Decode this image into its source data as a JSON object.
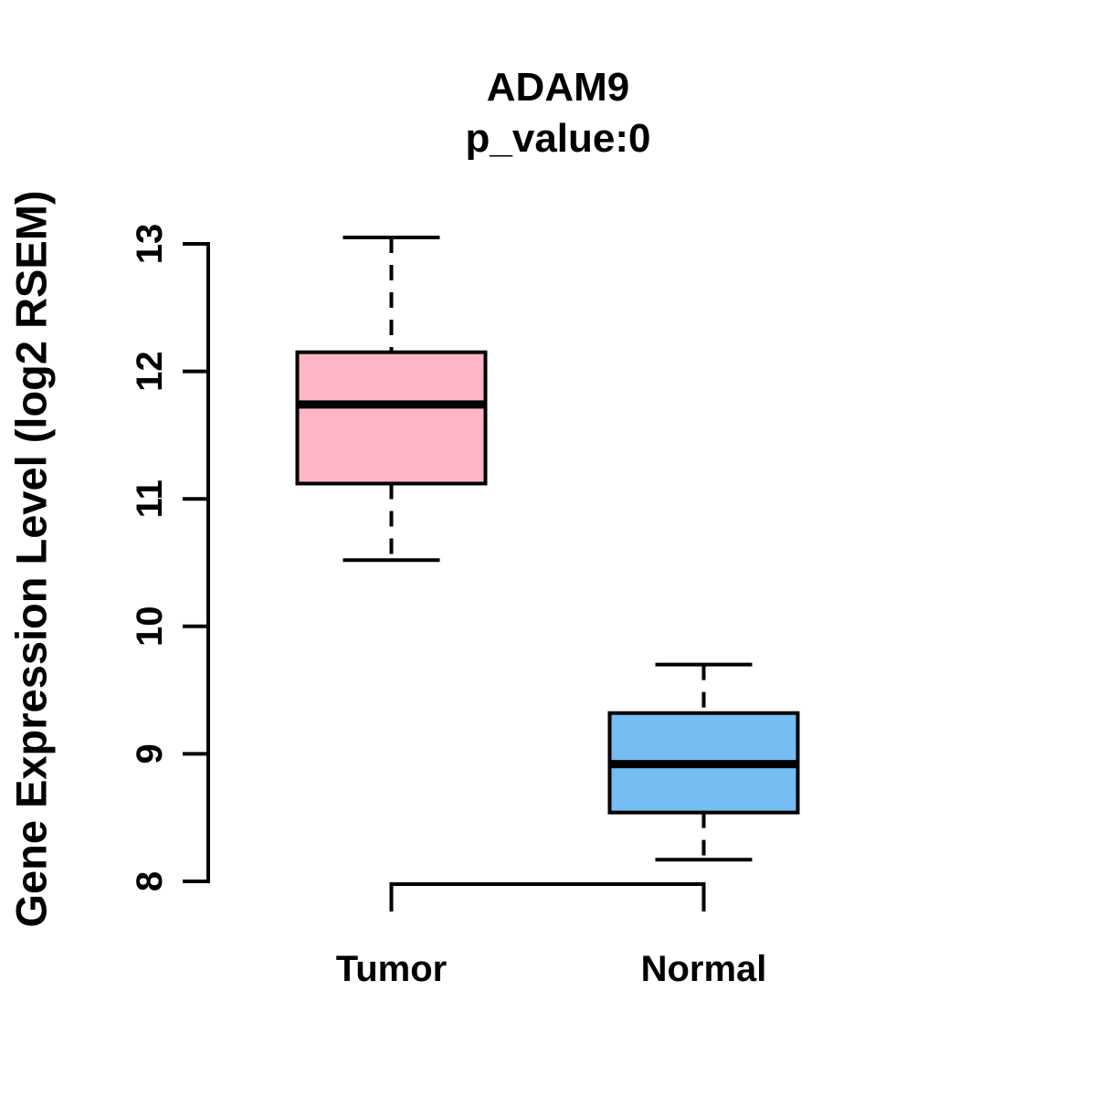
{
  "figure": {
    "background": "#ffffff",
    "foreground": "#000000"
  },
  "chart_data": {
    "type": "boxplot",
    "title": "ADAM9",
    "subtitle": "p_value:0",
    "ylabel": "Gene Expression Level (log2 RSEM)",
    "xlabel": "",
    "ylim": [
      7.85,
      13.15
    ],
    "yticks": [
      8,
      9,
      10,
      11,
      12,
      13
    ],
    "grid": false,
    "legend": "none",
    "categories": [
      "Tumor",
      "Normal"
    ],
    "series": [
      {
        "name": "Tumor",
        "color": "#FFB5C5",
        "whisker_low": 10.52,
        "q1": 11.12,
        "median": 11.74,
        "q3": 12.15,
        "whisker_high": 13.05
      },
      {
        "name": "Normal",
        "color": "#75BDF3",
        "whisker_low": 8.17,
        "q1": 8.54,
        "median": 8.92,
        "q3": 9.32,
        "whisker_high": 9.7
      }
    ]
  }
}
